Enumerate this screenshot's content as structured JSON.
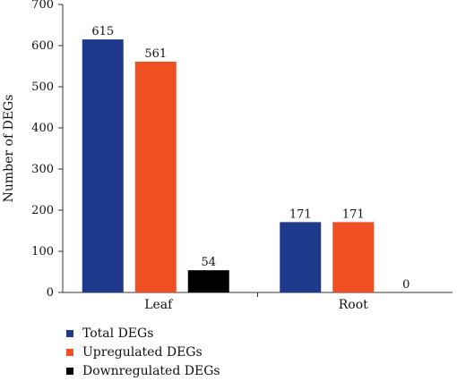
{
  "chart_data": {
    "type": "bar",
    "title": "",
    "xlabel": "",
    "ylabel": "Number of DEGs",
    "ylim": [
      0,
      700
    ],
    "yticks": [
      0,
      100,
      200,
      300,
      400,
      500,
      600,
      700
    ],
    "categories": [
      "Leaf",
      "Root"
    ],
    "series": [
      {
        "name": "Total DEGs",
        "color": "#1f3a8c",
        "values": [
          615,
          171
        ]
      },
      {
        "name": "Upregulated DEGs",
        "color": "#f04e23",
        "values": [
          561,
          171
        ]
      },
      {
        "name": "Downregulated DEGs",
        "color": "#000000",
        "values": [
          54,
          0
        ]
      }
    ],
    "grid": false,
    "legend_position": "bottom-left"
  }
}
